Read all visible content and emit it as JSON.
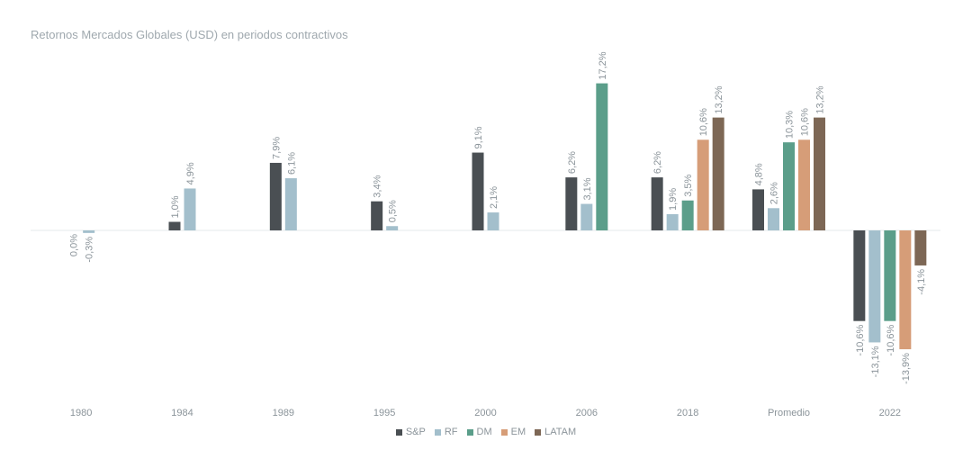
{
  "title": "Retornos Mercados Globales (USD) en periodos contractivos",
  "chart_data": {
    "type": "bar",
    "title": "Retornos Mercados Globales (USD) en periodos contractivos",
    "xlabel": "",
    "ylabel": "",
    "ylim": [
      -16.5,
      19
    ],
    "grid": false,
    "legend_position": "bottom",
    "categories": [
      "1980",
      "1984",
      "1989",
      "1995",
      "2000",
      "2006",
      "2018",
      "Promedio",
      "2022"
    ],
    "series": [
      {
        "name": "S&P",
        "color": "#4a4f53",
        "values": [
          0.0,
          1.0,
          7.9,
          3.4,
          9.1,
          6.2,
          6.2,
          4.8,
          -10.6
        ],
        "labels": [
          "0,0%",
          "1,0%",
          "7,9%",
          "3,4%",
          "9,1%",
          "6,2%",
          "6,2%",
          "4,8%",
          "-10,6%"
        ]
      },
      {
        "name": "RF",
        "color": "#a3bfcc",
        "values": [
          -0.3,
          4.9,
          6.1,
          0.5,
          2.1,
          3.1,
          1.9,
          2.6,
          -13.1
        ],
        "labels": [
          "-0,3%",
          "4,9%",
          "6,1%",
          "0,5%",
          "2,1%",
          "3,1%",
          "1,9%",
          "2,6%",
          "-13,1%"
        ]
      },
      {
        "name": "DM",
        "color": "#5b9e8a",
        "values": [
          null,
          null,
          null,
          null,
          null,
          17.2,
          3.5,
          10.3,
          -10.6
        ],
        "labels": [
          null,
          null,
          null,
          null,
          null,
          "17,2%",
          "3,5%",
          "10,3%",
          "-10,6%"
        ]
      },
      {
        "name": "EM",
        "color": "#d69d78",
        "values": [
          null,
          null,
          null,
          null,
          null,
          null,
          10.6,
          10.6,
          -13.9
        ],
        "labels": [
          null,
          null,
          null,
          null,
          null,
          null,
          "10,6%",
          "10,6%",
          "-13,9%"
        ]
      },
      {
        "name": "LATAM",
        "color": "#7d6755",
        "values": [
          null,
          null,
          null,
          null,
          null,
          null,
          13.2,
          13.2,
          -4.1
        ],
        "labels": [
          null,
          null,
          null,
          null,
          null,
          null,
          "13,2%",
          "13,2%",
          "-4,1%"
        ]
      }
    ]
  }
}
